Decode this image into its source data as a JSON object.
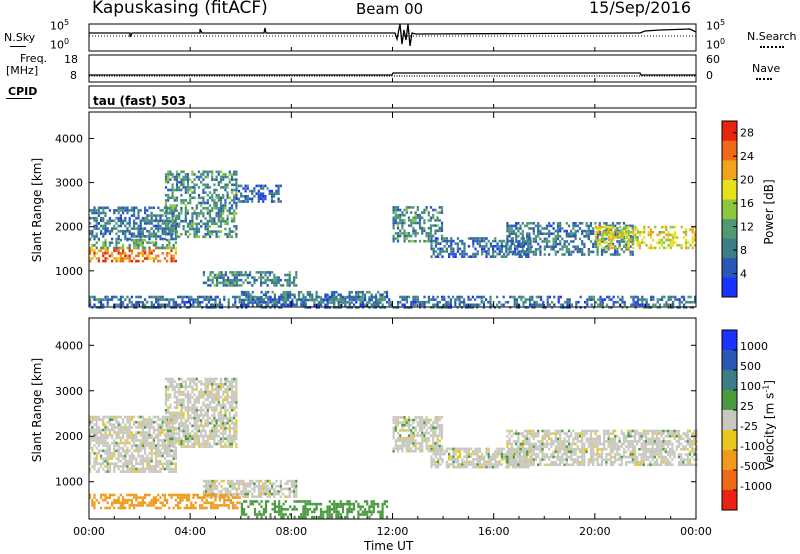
{
  "header": {
    "site": "Kapuskasing (fitACF)",
    "beam": "Beam 00",
    "date": "15/Sep/2016"
  },
  "noise_panel": {
    "left_label": "N.Sky",
    "right_label": "N.Search",
    "left_ticks": [
      "10^5",
      "10^0"
    ],
    "right_ticks": [
      "10^5",
      "10^0"
    ]
  },
  "freq_panel": {
    "left_label_top": "Freq.",
    "left_label_bottom": "[MHz]",
    "right_label": "Nave",
    "left_ticks": [
      "18",
      "8"
    ],
    "right_ticks": [
      "60",
      "0"
    ]
  },
  "cpid_panel": {
    "label": "CPID",
    "value": "tau (fast) 503"
  },
  "colors": {
    "accent_line": "#000000",
    "ground_scatter": "#c8c8c0",
    "power_scale": [
      "#1a33ff",
      "#2a58b8",
      "#3c7d88",
      "#4f9a74",
      "#8cc83c",
      "#e6e01e",
      "#f0a41e",
      "#ee6a14",
      "#e82410"
    ],
    "velocity_scale": [
      "#1a33ff",
      "#2a58b8",
      "#3c7d88",
      "#4a9a40",
      "#c8c8c0",
      "#e8c81e",
      "#f09a1e",
      "#ee6a14",
      "#e82410"
    ]
  },
  "chart_data": [
    {
      "type": "heatmap",
      "title": "",
      "xlabel": "Time UT",
      "ylabel": "Slant Range [km]",
      "x_ticks": [
        "00:00",
        "04:00",
        "08:00",
        "12:00",
        "16:00",
        "20:00",
        "00:00"
      ],
      "y_ticks": [
        "1000",
        "2000",
        "3000",
        "4000"
      ],
      "xlim": [
        0,
        24
      ],
      "ylim": [
        180,
        4600
      ],
      "colorbar": {
        "label": "Power [dB]",
        "ticks": [
          "4",
          "8",
          "12",
          "16",
          "20",
          "24",
          "28"
        ],
        "range": [
          0,
          30
        ]
      },
      "regions": [
        {
          "t0": 0.0,
          "t1": 3.4,
          "r0": 1250,
          "r1": 1550,
          "value": 24
        },
        {
          "t0": 0.0,
          "t1": 3.4,
          "r0": 1550,
          "r1": 1750,
          "value": 12
        },
        {
          "t0": 0.0,
          "t1": 3.4,
          "r0": 1750,
          "r1": 2500,
          "value": 8
        },
        {
          "t0": 3.0,
          "t1": 5.8,
          "r0": 1800,
          "r1": 3300,
          "value": 10
        },
        {
          "t0": 5.8,
          "t1": 7.6,
          "r0": 2600,
          "r1": 3000,
          "value": 6
        },
        {
          "t0": 4.5,
          "t1": 8.2,
          "r0": 700,
          "r1": 1050,
          "value": 9
        },
        {
          "t0": 6.0,
          "t1": 11.8,
          "r0": 250,
          "r1": 600,
          "value": 8
        },
        {
          "t0": 12.0,
          "t1": 14.0,
          "r0": 1700,
          "r1": 2500,
          "value": 10
        },
        {
          "t0": 13.5,
          "t1": 17.5,
          "r0": 1350,
          "r1": 1800,
          "value": 7
        },
        {
          "t0": 16.5,
          "t1": 21.5,
          "r0": 1400,
          "r1": 2150,
          "value": 8
        },
        {
          "t0": 20.0,
          "t1": 24.0,
          "r0": 1550,
          "r1": 2050,
          "value": 18
        },
        {
          "t0": 0.0,
          "t1": 24.0,
          "r0": 200,
          "r1": 450,
          "value": 7
        }
      ]
    },
    {
      "type": "heatmap",
      "title": "",
      "xlabel": "Time UT",
      "ylabel": "Slant Range [km]",
      "x_ticks": [
        "00:00",
        "04:00",
        "08:00",
        "12:00",
        "16:00",
        "20:00",
        "00:00"
      ],
      "y_ticks": [
        "1000",
        "2000",
        "3000",
        "4000"
      ],
      "xlim": [
        0,
        24
      ],
      "ylim": [
        180,
        4600
      ],
      "colorbar": {
        "label": "Velocity [m s^-1]",
        "ticks": [
          "1000",
          "500",
          "100",
          "25",
          "-25",
          "-100",
          "-500",
          "-1000"
        ]
      },
      "regions": [
        {
          "t0": 0.0,
          "t1": 3.4,
          "r0": 1250,
          "r1": 2500,
          "value": 0
        },
        {
          "t0": 3.0,
          "t1": 5.8,
          "r0": 1800,
          "r1": 3300,
          "value": 0
        },
        {
          "t0": 4.5,
          "t1": 8.2,
          "r0": 700,
          "r1": 1050,
          "value": 0
        },
        {
          "t0": 6.0,
          "t1": 11.8,
          "r0": 250,
          "r1": 600,
          "value": 60
        },
        {
          "t0": 12.0,
          "t1": 14.0,
          "r0": 1700,
          "r1": 2500,
          "value": 0
        },
        {
          "t0": 13.5,
          "t1": 17.5,
          "r0": 1350,
          "r1": 1800,
          "value": 0
        },
        {
          "t0": 16.5,
          "t1": 24.0,
          "r0": 1400,
          "r1": 2150,
          "value": 0
        },
        {
          "t0": 0.0,
          "t1": 6.0,
          "r0": 450,
          "r1": 750,
          "value": -150
        }
      ]
    }
  ]
}
